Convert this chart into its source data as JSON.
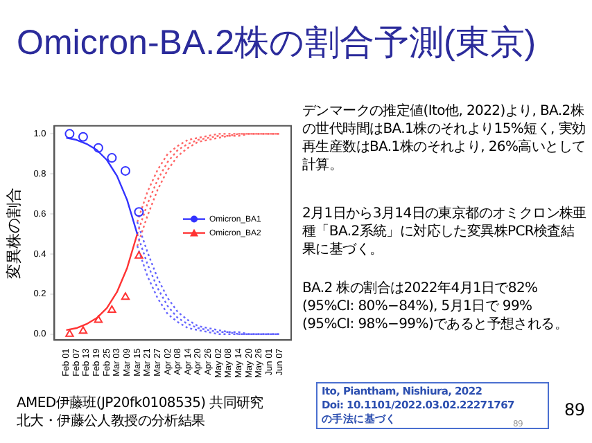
{
  "chart_data": {
    "type": "line",
    "title": "Omicron-BA.2株の割合予測(東京)",
    "ylabel": "変異株の割合",
    "xlim": [
      "--01-25",
      "--06-14"
    ],
    "ylim": [
      -0.03,
      1.04
    ],
    "xticks": [
      {
        "value": "--02-01",
        "label": "Feb 01"
      },
      {
        "value": "--02-07",
        "label": "Feb 07"
      },
      {
        "value": "--02-13",
        "label": "Feb 13"
      },
      {
        "value": "--02-19",
        "label": "Feb 19"
      },
      {
        "value": "--02-25",
        "label": "Feb 25"
      },
      {
        "value": "--03-03",
        "label": "Mar 03"
      },
      {
        "value": "--03-09",
        "label": "Mar 09"
      },
      {
        "value": "--03-15",
        "label": "Mar 15"
      },
      {
        "value": "--03-21",
        "label": "Mar 21"
      },
      {
        "value": "--03-27",
        "label": "Mar 27"
      },
      {
        "value": "--04-02",
        "label": "Apr 02"
      },
      {
        "value": "--04-08",
        "label": "Apr 08"
      },
      {
        "value": "--04-14",
        "label": "Apr 14"
      },
      {
        "value": "--04-20",
        "label": "Apr 20"
      },
      {
        "value": "--04-26",
        "label": "Apr 26"
      },
      {
        "value": "--05-02",
        "label": "May 02"
      },
      {
        "value": "--05-08",
        "label": "May 08"
      },
      {
        "value": "--05-14",
        "label": "May 14"
      },
      {
        "value": "--05-20",
        "label": "May 20"
      },
      {
        "value": "--05-26",
        "label": "May 26"
      },
      {
        "value": "--06-01",
        "label": "Jun 01"
      },
      {
        "value": "--06-07",
        "label": "Jun 07"
      }
    ],
    "yticks": [
      {
        "value": 0,
        "label": "0.0"
      },
      {
        "value": 0.2,
        "label": "0.2"
      },
      {
        "value": 0.4,
        "label": "0.4"
      },
      {
        "value": 0.6,
        "label": "0.6"
      },
      {
        "value": 0.8,
        "label": "0.8"
      },
      {
        "value": 1,
        "label": "1.0"
      }
    ],
    "series": [
      {
        "name": "Omicron_BA1",
        "type": "scatter",
        "marker": "circle",
        "color": "#3333ff",
        "x": [
          "--02-03",
          "--02-11",
          "--02-20",
          "--02-28",
          "--03-08",
          "--03-16"
        ],
        "values": [
          1.0,
          0.985,
          0.93,
          0.88,
          0.815,
          0.61
        ]
      },
      {
        "name": "Omicron_BA2",
        "type": "scatter",
        "marker": "triangle",
        "color": "#ff3333",
        "x": [
          "--02-03",
          "--02-11",
          "--02-20",
          "--02-28",
          "--03-08",
          "--03-16"
        ],
        "values": [
          0.0,
          0.015,
          0.07,
          0.12,
          0.185,
          0.39
        ]
      },
      {
        "line_style": "solid",
        "color": "#3333ff",
        "x": [
          "--02-01",
          "--02-07",
          "--02-13",
          "--02-19",
          "--02-25",
          "--03-03",
          "--03-09",
          "--03-15"
        ],
        "values": [
          0.98,
          0.97,
          0.95,
          0.92,
          0.87,
          0.79,
          0.67,
          0.5
        ]
      },
      {
        "line_style": "solid",
        "color": "#ff3333",
        "x": [
          "--02-01",
          "--02-07",
          "--02-13",
          "--02-19",
          "--02-25",
          "--03-03",
          "--03-09",
          "--03-15"
        ],
        "values": [
          0.02,
          0.03,
          0.05,
          0.08,
          0.13,
          0.21,
          0.33,
          0.5
        ]
      },
      {
        "line_style": "dotted",
        "color": "#6666ff",
        "x": [
          "--03-15",
          "--03-21",
          "--03-27",
          "--04-02",
          "--04-08",
          "--04-14",
          "--04-20",
          "--04-26",
          "--05-02",
          "--05-08",
          "--05-14",
          "--05-20",
          "--05-26",
          "--06-01",
          "--06-07"
        ],
        "values": [
          0.5,
          0.35,
          0.23,
          0.14,
          0.08,
          0.05,
          0.03,
          0.02,
          0.01,
          0.01,
          0.0,
          0.0,
          0.0,
          0.0,
          0.0
        ]
      },
      {
        "line_style": "dotted",
        "color": "#ff6666",
        "x": [
          "--03-15",
          "--03-21",
          "--03-27",
          "--04-02",
          "--04-08",
          "--04-14",
          "--04-20",
          "--04-26",
          "--05-02",
          "--05-08",
          "--05-14",
          "--05-20",
          "--05-26",
          "--06-01",
          "--06-07"
        ],
        "values": [
          0.5,
          0.65,
          0.77,
          0.86,
          0.92,
          0.95,
          0.97,
          0.98,
          0.99,
          0.99,
          1.0,
          1.0,
          1.0,
          1.0,
          1.0
        ]
      },
      {
        "line_style": "dotted",
        "color": "#6666ff",
        "x": [
          "--03-15",
          "--03-21",
          "--03-27",
          "--04-02",
          "--04-08",
          "--04-14",
          "--04-20",
          "--04-26",
          "--05-02",
          "--05-08",
          "--05-14",
          "--05-20",
          "--05-26",
          "--06-01",
          "--06-07"
        ],
        "values": [
          0.44,
          0.29,
          0.18,
          0.1,
          0.06,
          0.03,
          0.02,
          0.01,
          0.0,
          0.0,
          0.0,
          0.0,
          0.0,
          0.0,
          0.0
        ]
      },
      {
        "line_style": "dotted",
        "color": "#6666ff",
        "x": [
          "--03-15",
          "--03-21",
          "--03-27",
          "--04-02",
          "--04-08",
          "--04-14",
          "--04-20",
          "--04-26",
          "--05-02",
          "--05-08",
          "--05-14",
          "--05-20",
          "--05-26",
          "--06-01",
          "--06-07"
        ],
        "values": [
          0.56,
          0.41,
          0.28,
          0.18,
          0.11,
          0.07,
          0.04,
          0.03,
          0.02,
          0.01,
          0.01,
          0.0,
          0.0,
          0.0,
          0.0
        ]
      },
      {
        "line_style": "dotted",
        "color": "#ff6666",
        "x": [
          "--03-15",
          "--03-21",
          "--03-27",
          "--04-02",
          "--04-08",
          "--04-14",
          "--04-20",
          "--04-26",
          "--05-02",
          "--05-08",
          "--05-14",
          "--05-20",
          "--05-26",
          "--06-01",
          "--06-07"
        ],
        "values": [
          0.44,
          0.59,
          0.72,
          0.82,
          0.89,
          0.93,
          0.96,
          0.97,
          0.98,
          0.99,
          0.99,
          1.0,
          1.0,
          1.0,
          1.0
        ]
      },
      {
        "line_style": "dotted",
        "color": "#ff6666",
        "x": [
          "--03-15",
          "--03-21",
          "--03-27",
          "--04-02",
          "--04-08",
          "--04-14",
          "--04-20",
          "--04-26",
          "--05-02",
          "--05-08",
          "--05-14",
          "--05-20",
          "--05-26",
          "--06-01",
          "--06-07"
        ],
        "values": [
          0.56,
          0.71,
          0.82,
          0.9,
          0.94,
          0.97,
          0.98,
          0.99,
          1.0,
          1.0,
          1.0,
          1.0,
          1.0,
          1.0,
          1.0
        ]
      }
    ],
    "legend": "right",
    "grid": false,
    "annotations": [
      "デンマークの推定値(Ito他, 2022)より, BA.2株の世代時間はBA.1株のそれより15%短く, 実効再生産数はBA.1株のそれより, 26%高いとして計算。",
      "2月1日から3月14日の東京都のオミクロン株亜種「BA.2系統」に対応した変異株PCR検査結果に基づく。",
      "BA.2 株の割合は2022年4月1日で82% (95%CI: 80%−84%), 5月1日で 99% (95%CI: 98%−99%)であると予想される。",
      "AMED伊藤班(JP20fk0108535) 共同研究",
      "北大・伊藤公人教授の分析結果",
      "Ito, Piantham, Nishiura, 2022\nDoi: 10.1101/2022.03.02.22271767\nの手法に基づく",
      "89",
      "89"
    ]
  }
}
